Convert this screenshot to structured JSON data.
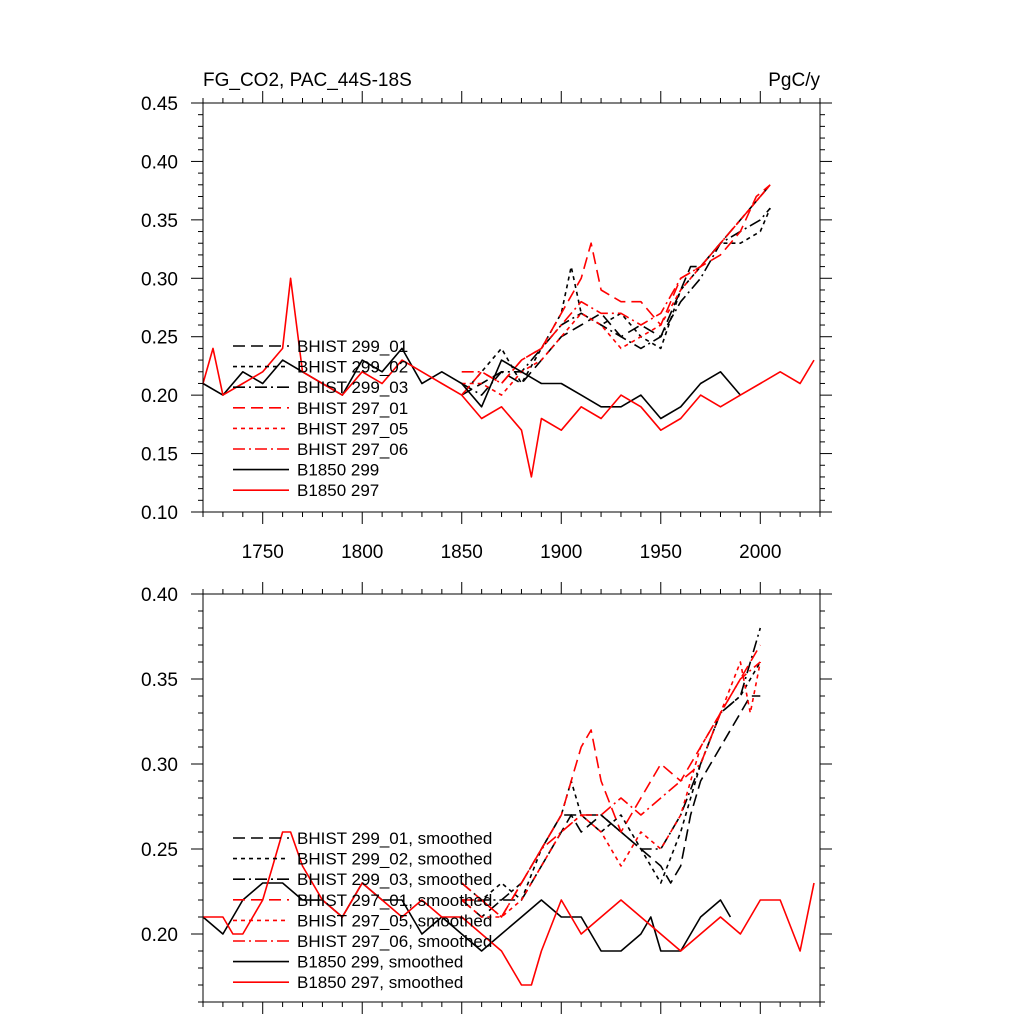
{
  "colors": {
    "black": "#000000",
    "red": "#ff0000"
  },
  "chart_data": [
    {
      "type": "line",
      "title": "FG_CO2, PAC_44S-18S",
      "units": "PgC/y",
      "xlim": [
        1720,
        2030
      ],
      "ylim": [
        0.1,
        0.45
      ],
      "xticks": [
        1750,
        1800,
        1850,
        1900,
        1950,
        2000
      ],
      "yticks": [
        0.1,
        0.15,
        0.2,
        0.25,
        0.3,
        0.35,
        0.4,
        0.45
      ],
      "xtick_labels": [
        "1750",
        "1800",
        "1850",
        "1900",
        "1950",
        "2000"
      ],
      "ytick_labels": [
        "0.10",
        "0.15",
        "0.20",
        "0.25",
        "0.30",
        "0.35",
        "0.40",
        "0.45"
      ],
      "legend_position": "lower-left",
      "series": [
        {
          "name": "BHIST 299_01",
          "color": "#000000",
          "dash": "long-dash",
          "x": [
            1850,
            1860,
            1870,
            1880,
            1890,
            1900,
            1910,
            1920,
            1930,
            1940,
            1950,
            1955,
            1960,
            1965,
            1970,
            1975,
            1980,
            1985,
            1990,
            1995,
            2000,
            2005
          ],
          "y": [
            0.2,
            0.21,
            0.22,
            0.21,
            0.23,
            0.25,
            0.26,
            0.27,
            0.25,
            0.26,
            0.25,
            0.27,
            0.29,
            0.31,
            0.31,
            0.32,
            0.33,
            0.34,
            0.35,
            0.36,
            0.37,
            0.38
          ]
        },
        {
          "name": "BHIST 299_02",
          "color": "#000000",
          "dash": "short-dash",
          "x": [
            1850,
            1860,
            1870,
            1880,
            1890,
            1900,
            1905,
            1910,
            1920,
            1930,
            1940,
            1950,
            1960,
            1970,
            1980,
            1990,
            2000,
            2005
          ],
          "y": [
            0.2,
            0.22,
            0.24,
            0.21,
            0.24,
            0.27,
            0.31,
            0.27,
            0.26,
            0.27,
            0.25,
            0.24,
            0.29,
            0.31,
            0.33,
            0.33,
            0.34,
            0.36
          ]
        },
        {
          "name": "BHIST 299_03",
          "color": "#000000",
          "dash": "dash-dot",
          "x": [
            1850,
            1860,
            1870,
            1880,
            1890,
            1900,
            1910,
            1920,
            1930,
            1940,
            1950,
            1960,
            1970,
            1980,
            1990,
            2000,
            2005
          ],
          "y": [
            0.21,
            0.2,
            0.22,
            0.22,
            0.24,
            0.26,
            0.27,
            0.26,
            0.25,
            0.24,
            0.25,
            0.28,
            0.3,
            0.33,
            0.34,
            0.35,
            0.36
          ]
        },
        {
          "name": "BHIST 297_01",
          "color": "#ff0000",
          "dash": "long-dash",
          "x": [
            1850,
            1860,
            1870,
            1880,
            1890,
            1900,
            1910,
            1915,
            1920,
            1930,
            1940,
            1950,
            1960,
            1970,
            1980,
            1990,
            1998,
            2005
          ],
          "y": [
            0.2,
            0.22,
            0.21,
            0.23,
            0.24,
            0.27,
            0.3,
            0.33,
            0.29,
            0.28,
            0.28,
            0.26,
            0.3,
            0.31,
            0.32,
            0.34,
            0.37,
            0.38
          ]
        },
        {
          "name": "BHIST 297_05",
          "color": "#ff0000",
          "dash": "short-dash",
          "x": [
            1850,
            1860,
            1870,
            1880,
            1890,
            1900,
            1910,
            1920,
            1930,
            1940,
            1950,
            1960,
            1970,
            1980,
            1990,
            2000,
            2005
          ],
          "y": [
            0.21,
            0.21,
            0.2,
            0.22,
            0.23,
            0.25,
            0.27,
            0.26,
            0.24,
            0.25,
            0.26,
            0.29,
            0.31,
            0.33,
            0.35,
            0.37,
            0.38
          ]
        },
        {
          "name": "BHIST 297_06",
          "color": "#ff0000",
          "dash": "dash-dot",
          "x": [
            1850,
            1860,
            1870,
            1880,
            1890,
            1900,
            1910,
            1920,
            1930,
            1940,
            1950,
            1960,
            1970,
            1980,
            1990,
            2000,
            2005
          ],
          "y": [
            0.22,
            0.22,
            0.21,
            0.23,
            0.24,
            0.26,
            0.28,
            0.27,
            0.27,
            0.26,
            0.27,
            0.3,
            0.31,
            0.33,
            0.35,
            0.37,
            0.38
          ]
        },
        {
          "name": "B1850 299",
          "color": "#000000",
          "dash": "solid",
          "x": [
            1720,
            1730,
            1740,
            1750,
            1760,
            1770,
            1780,
            1790,
            1800,
            1810,
            1820,
            1830,
            1840,
            1850,
            1860,
            1870,
            1880,
            1890,
            1900,
            1910,
            1920,
            1930,
            1940,
            1950,
            1960,
            1970,
            1980,
            1990
          ],
          "y": [
            0.21,
            0.2,
            0.22,
            0.21,
            0.23,
            0.22,
            0.21,
            0.2,
            0.23,
            0.22,
            0.24,
            0.21,
            0.22,
            0.21,
            0.19,
            0.23,
            0.22,
            0.21,
            0.21,
            0.2,
            0.19,
            0.19,
            0.2,
            0.18,
            0.19,
            0.21,
            0.22,
            0.2
          ]
        },
        {
          "name": "B1850 297",
          "color": "#ff0000",
          "dash": "solid",
          "x": [
            1720,
            1725,
            1730,
            1740,
            1750,
            1760,
            1764,
            1770,
            1780,
            1790,
            1800,
            1810,
            1820,
            1830,
            1840,
            1850,
            1860,
            1870,
            1880,
            1885,
            1890,
            1900,
            1910,
            1920,
            1930,
            1940,
            1950,
            1960,
            1970,
            1980,
            1990,
            2000,
            2010,
            2020,
            2027
          ],
          "y": [
            0.21,
            0.24,
            0.2,
            0.21,
            0.22,
            0.24,
            0.3,
            0.22,
            0.21,
            0.2,
            0.22,
            0.21,
            0.23,
            0.22,
            0.21,
            0.2,
            0.18,
            0.19,
            0.17,
            0.13,
            0.18,
            0.17,
            0.19,
            0.18,
            0.2,
            0.19,
            0.17,
            0.18,
            0.2,
            0.19,
            0.2,
            0.21,
            0.22,
            0.21,
            0.23
          ]
        }
      ]
    },
    {
      "type": "line",
      "xlim": [
        1720,
        2030
      ],
      "ylim": [
        0.16,
        0.4
      ],
      "yticks": [
        0.2,
        0.25,
        0.3,
        0.35,
        0.4
      ],
      "ytick_labels": [
        "0.20",
        "0.25",
        "0.30",
        "0.35",
        "0.40"
      ],
      "xticks": [
        1750,
        1800,
        1850,
        1900,
        1950,
        2000
      ],
      "legend_position": "lower-left",
      "series": [
        {
          "name": "BHIST 299_01, smoothed",
          "color": "#000000",
          "dash": "long-dash",
          "x": [
            1850,
            1860,
            1870,
            1880,
            1890,
            1900,
            1905,
            1910,
            1920,
            1930,
            1940,
            1950,
            1955,
            1960,
            1965,
            1970,
            1980,
            1990,
            1995,
            2000
          ],
          "y": [
            0.22,
            0.21,
            0.22,
            0.22,
            0.24,
            0.26,
            0.27,
            0.26,
            0.27,
            0.26,
            0.25,
            0.24,
            0.23,
            0.24,
            0.27,
            0.29,
            0.31,
            0.33,
            0.34,
            0.34
          ]
        },
        {
          "name": "BHIST 299_02, smoothed",
          "color": "#000000",
          "dash": "short-dash",
          "x": [
            1850,
            1860,
            1870,
            1880,
            1890,
            1900,
            1905,
            1910,
            1920,
            1930,
            1940,
            1950,
            1960,
            1970,
            1980,
            1990,
            2000
          ],
          "y": [
            0.22,
            0.22,
            0.23,
            0.22,
            0.25,
            0.27,
            0.29,
            0.27,
            0.26,
            0.27,
            0.25,
            0.23,
            0.26,
            0.3,
            0.33,
            0.34,
            0.36
          ]
        },
        {
          "name": "BHIST 299_03, smoothed",
          "color": "#000000",
          "dash": "dash-dot",
          "x": [
            1850,
            1860,
            1870,
            1880,
            1890,
            1900,
            1910,
            1920,
            1930,
            1940,
            1950,
            1960,
            1970,
            1980,
            1990,
            2000
          ],
          "y": [
            0.23,
            0.22,
            0.22,
            0.23,
            0.25,
            0.27,
            0.27,
            0.27,
            0.26,
            0.25,
            0.25,
            0.27,
            0.3,
            0.33,
            0.34,
            0.38
          ]
        },
        {
          "name": "BHIST 297_01, smoothed",
          "color": "#ff0000",
          "dash": "long-dash",
          "x": [
            1850,
            1860,
            1870,
            1880,
            1890,
            1900,
            1905,
            1910,
            1915,
            1920,
            1930,
            1940,
            1950,
            1960,
            1970,
            1980,
            1990,
            2000
          ],
          "y": [
            0.23,
            0.22,
            0.21,
            0.23,
            0.25,
            0.27,
            0.29,
            0.31,
            0.32,
            0.29,
            0.26,
            0.28,
            0.3,
            0.29,
            0.31,
            0.33,
            0.35,
            0.37
          ]
        },
        {
          "name": "BHIST 297_05, smoothed",
          "color": "#ff0000",
          "dash": "short-dash",
          "x": [
            1850,
            1860,
            1870,
            1880,
            1890,
            1900,
            1910,
            1920,
            1930,
            1940,
            1950,
            1960,
            1970,
            1980,
            1990,
            1995,
            2000
          ],
          "y": [
            0.22,
            0.21,
            0.21,
            0.22,
            0.24,
            0.26,
            0.27,
            0.26,
            0.24,
            0.26,
            0.25,
            0.27,
            0.31,
            0.33,
            0.36,
            0.33,
            0.36
          ]
        },
        {
          "name": "BHIST 297_06, smoothed",
          "color": "#ff0000",
          "dash": "dash-dot",
          "x": [
            1850,
            1860,
            1870,
            1880,
            1890,
            1900,
            1910,
            1920,
            1930,
            1940,
            1950,
            1960,
            1970,
            1980,
            1990,
            2000
          ],
          "y": [
            0.22,
            0.22,
            0.21,
            0.23,
            0.25,
            0.26,
            0.27,
            0.27,
            0.28,
            0.27,
            0.28,
            0.29,
            0.3,
            0.33,
            0.35,
            0.36
          ]
        },
        {
          "name": "B1850 299, smoothed",
          "color": "#000000",
          "dash": "solid",
          "x": [
            1720,
            1730,
            1735,
            1740,
            1750,
            1760,
            1770,
            1780,
            1790,
            1800,
            1810,
            1820,
            1830,
            1840,
            1850,
            1860,
            1870,
            1880,
            1890,
            1900,
            1910,
            1920,
            1930,
            1940,
            1945,
            1950,
            1960,
            1970,
            1980,
            1985
          ],
          "y": [
            0.21,
            0.2,
            0.21,
            0.22,
            0.23,
            0.23,
            0.22,
            0.22,
            0.21,
            0.23,
            0.22,
            0.22,
            0.2,
            0.21,
            0.2,
            0.19,
            0.2,
            0.21,
            0.22,
            0.21,
            0.21,
            0.19,
            0.19,
            0.2,
            0.21,
            0.19,
            0.19,
            0.21,
            0.22,
            0.21
          ]
        },
        {
          "name": "B1850 297, smoothed",
          "color": "#ff0000",
          "dash": "solid",
          "x": [
            1720,
            1730,
            1735,
            1740,
            1750,
            1755,
            1760,
            1764,
            1770,
            1780,
            1790,
            1800,
            1810,
            1820,
            1830,
            1840,
            1850,
            1860,
            1870,
            1880,
            1885,
            1890,
            1900,
            1910,
            1920,
            1930,
            1940,
            1950,
            1960,
            1970,
            1980,
            1990,
            2000,
            2010,
            2020,
            2027
          ],
          "y": [
            0.21,
            0.21,
            0.2,
            0.2,
            0.22,
            0.24,
            0.26,
            0.26,
            0.24,
            0.22,
            0.21,
            0.23,
            0.22,
            0.21,
            0.22,
            0.21,
            0.21,
            0.2,
            0.19,
            0.17,
            0.17,
            0.19,
            0.22,
            0.2,
            0.21,
            0.22,
            0.21,
            0.2,
            0.19,
            0.2,
            0.21,
            0.2,
            0.22,
            0.22,
            0.19,
            0.23
          ]
        }
      ]
    }
  ]
}
